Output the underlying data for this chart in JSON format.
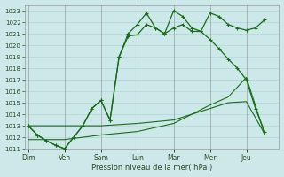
{
  "xlabel": "Pression niveau de la mer( hPa )",
  "bg_color": "#cce8e8",
  "grid_color": "#aad0d0",
  "line_color": "#1a6b1a",
  "ylim": [
    1011,
    1023.5
  ],
  "yticks": [
    1011,
    1012,
    1013,
    1014,
    1015,
    1016,
    1017,
    1018,
    1019,
    1020,
    1021,
    1022,
    1023
  ],
  "day_labels": [
    "Dim",
    "Ven",
    "Sam",
    "Lun",
    "Mar",
    "Mer",
    "Jeu"
  ],
  "day_x": [
    0,
    2,
    4,
    6,
    8,
    10,
    12
  ],
  "xlim": [
    -0.2,
    13.8
  ],
  "series1_x": [
    0,
    0.5,
    1,
    1.5,
    2,
    2.5,
    3,
    3.5,
    4,
    4.5,
    5,
    5.5,
    6,
    6.5,
    7,
    7.5,
    8,
    8.5,
    9,
    9.5,
    10,
    10.5,
    11,
    11.5,
    12,
    12.5,
    13
  ],
  "series1_y": [
    1013.0,
    1012.2,
    1011.7,
    1011.3,
    1011.0,
    1012.0,
    1013.0,
    1014.5,
    1015.2,
    1013.5,
    1019.0,
    1020.8,
    1020.9,
    1021.8,
    1021.5,
    1021.0,
    1021.5,
    1021.8,
    1021.2,
    1021.2,
    1022.8,
    1022.5,
    1021.8,
    1021.5,
    1021.3,
    1021.5,
    1022.2
  ],
  "series2_x": [
    0,
    0.5,
    1,
    1.5,
    2,
    2.5,
    3,
    3.5,
    4,
    4.5,
    5,
    5.5,
    6,
    6.5,
    7,
    7.5,
    8,
    8.5,
    9,
    9.5,
    10,
    10.5,
    11,
    11.5,
    12,
    12.5,
    13
  ],
  "series2_y": [
    1013.0,
    1012.2,
    1011.7,
    1011.3,
    1011.0,
    1012.0,
    1013.0,
    1014.5,
    1015.2,
    1013.5,
    1019.0,
    1021.0,
    1021.8,
    1022.8,
    1021.5,
    1021.0,
    1023.0,
    1022.5,
    1021.5,
    1021.2,
    1020.5,
    1019.7,
    1018.8,
    1018.0,
    1017.0,
    1014.5,
    1012.5
  ],
  "series3_x": [
    0,
    2,
    4,
    6,
    8,
    10,
    11,
    12,
    13
  ],
  "series3_y": [
    1013.0,
    1013.0,
    1013.0,
    1013.2,
    1013.5,
    1014.5,
    1015.0,
    1015.1,
    1012.3
  ],
  "series4_x": [
    0,
    2,
    4,
    6,
    8,
    10,
    11,
    12,
    13
  ],
  "series4_y": [
    1011.8,
    1011.8,
    1012.2,
    1012.5,
    1013.2,
    1014.8,
    1015.5,
    1017.2,
    1012.3
  ]
}
